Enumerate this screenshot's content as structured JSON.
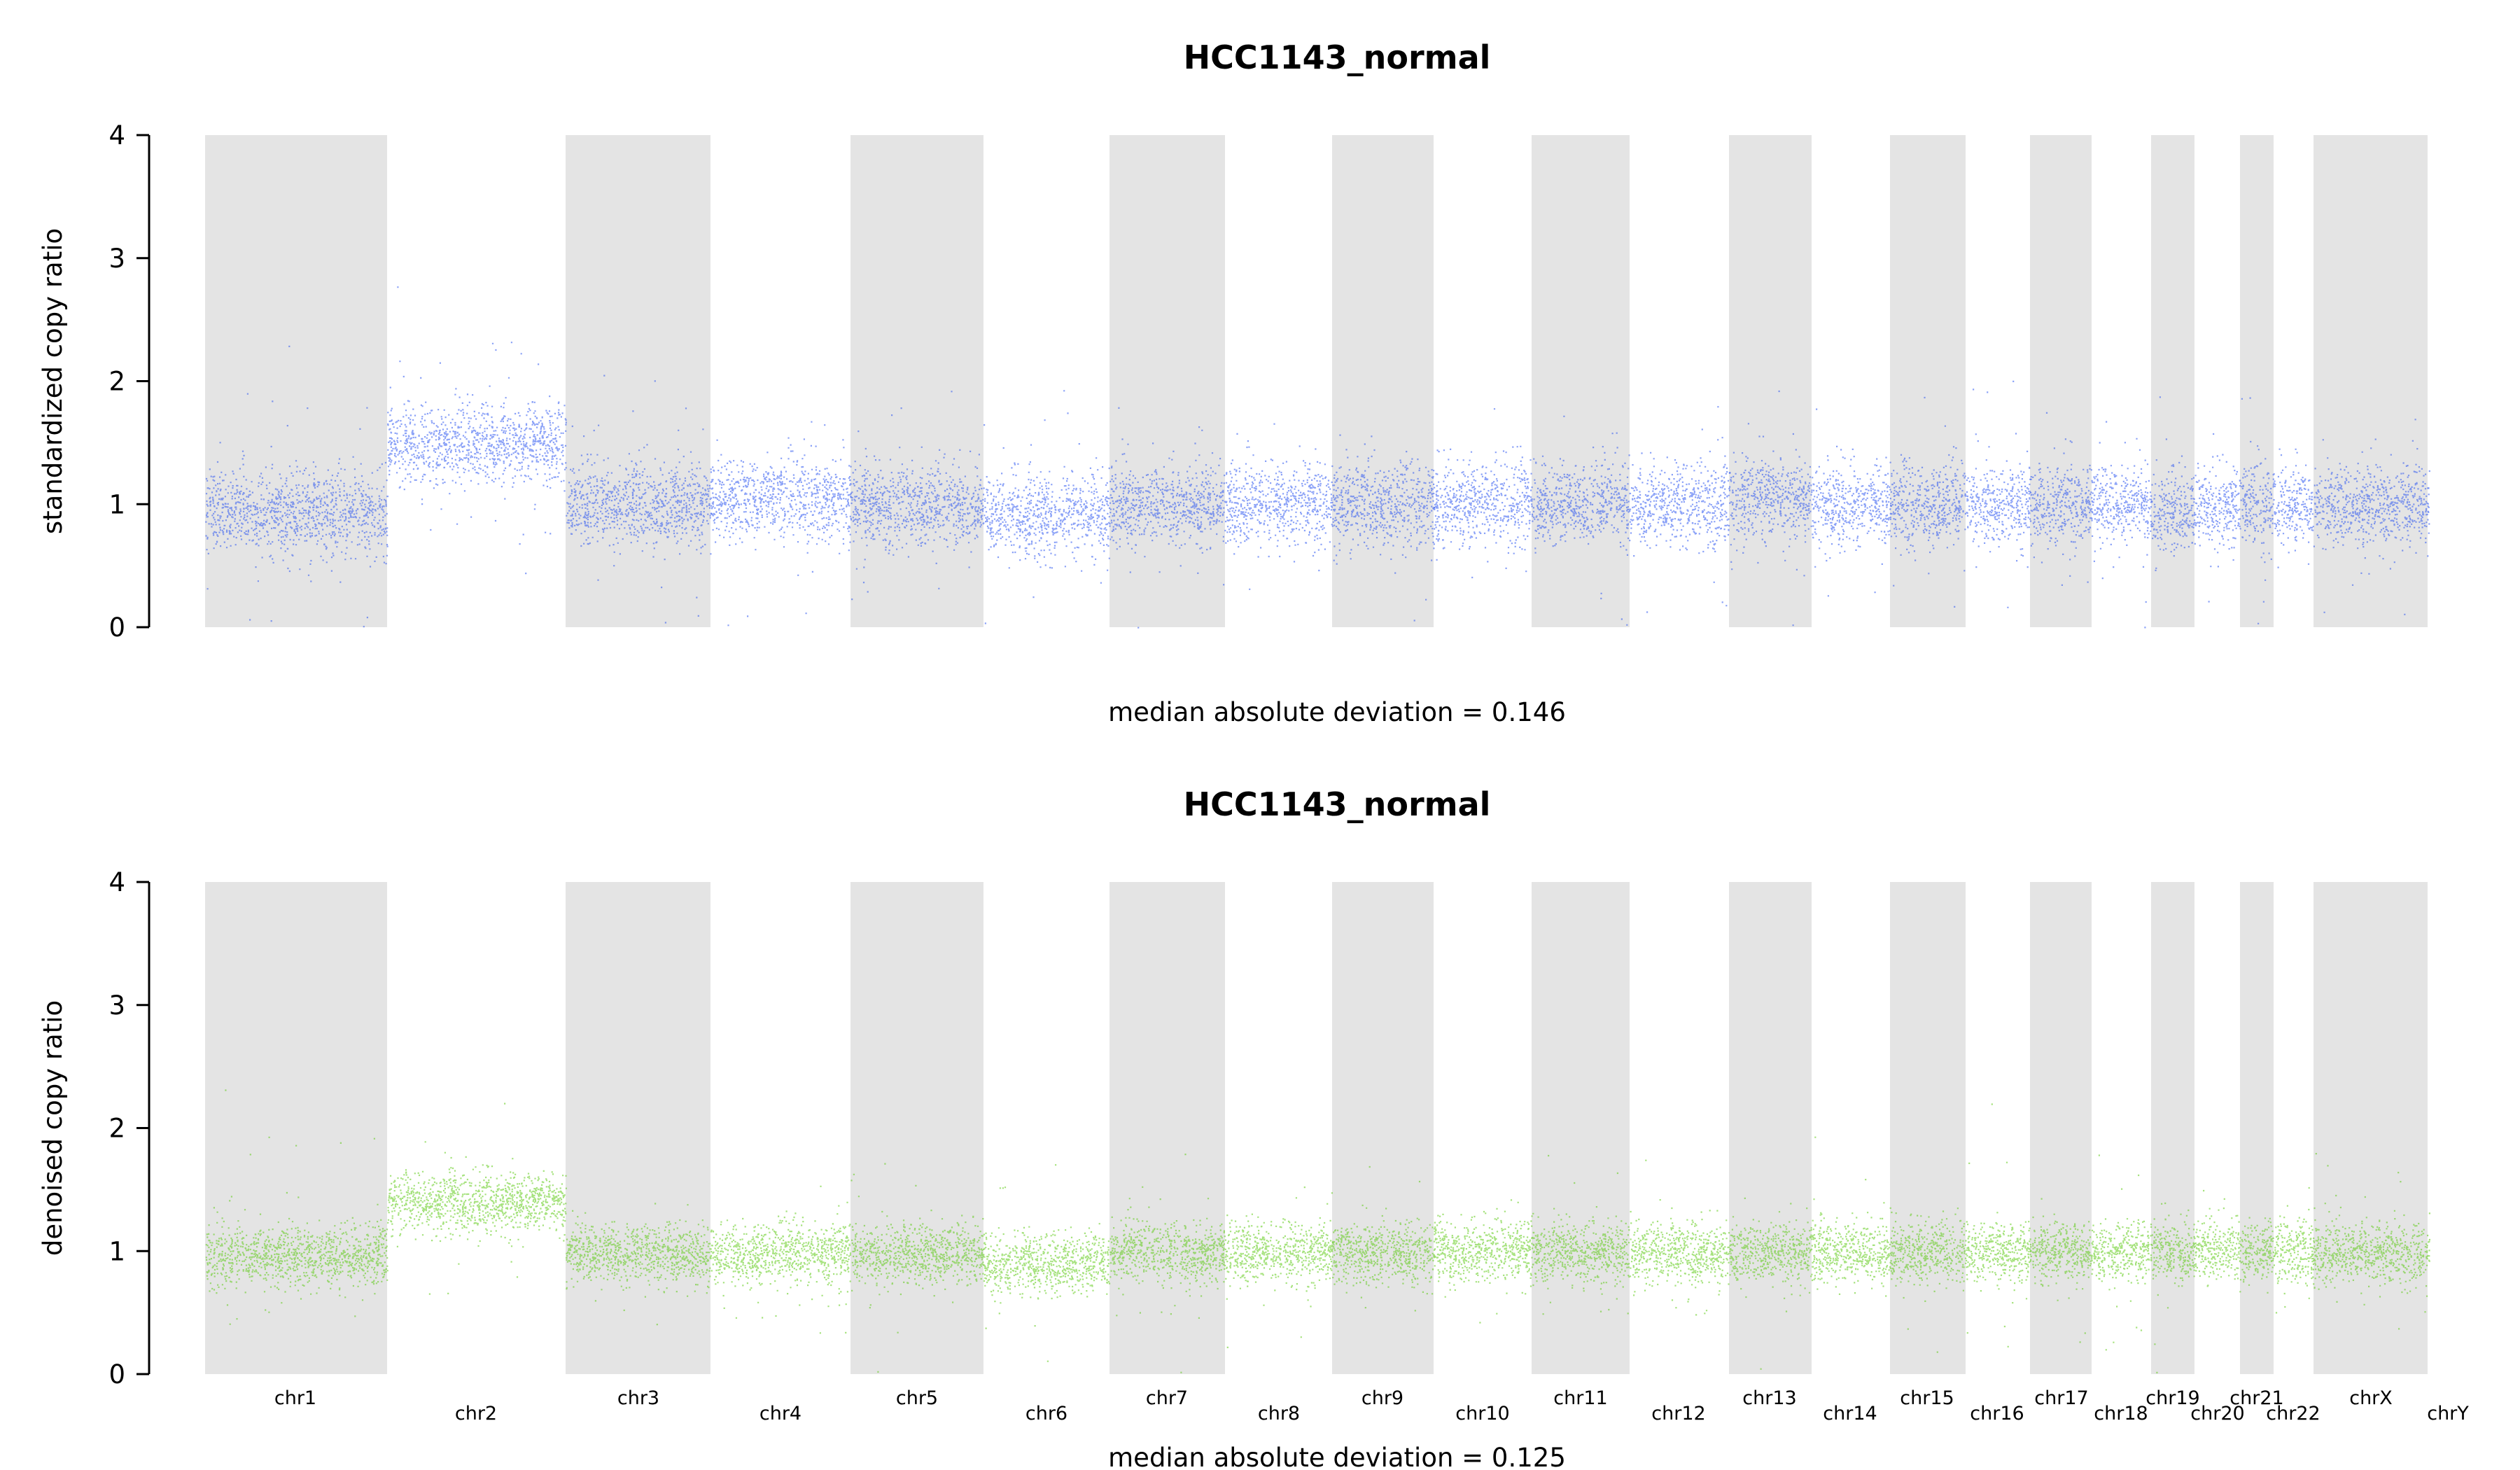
{
  "chart_data": [
    {
      "type": "scatter",
      "title": "HCC1143_normal",
      "ylabel": "standardized copy ratio",
      "ylim": [
        0,
        4
      ],
      "yticks": [
        "0",
        "1",
        "2",
        "3",
        "4"
      ],
      "point_color": "#2b55f0",
      "annotation": "median absolute deviation = 0.146",
      "segments": [
        {
          "chr": "chr1",
          "center": 0.95
        },
        {
          "chr": "chr2",
          "center": 1.5
        },
        {
          "chr": "chr3",
          "center": 1.0
        },
        {
          "chr": "chr4",
          "center": 1.05
        },
        {
          "chr": "chr5",
          "center": 1.0
        },
        {
          "chr": "chr6",
          "center": 0.92
        },
        {
          "chr": "chr7",
          "center": 1.0
        },
        {
          "chr": "chr8",
          "center": 1.0
        },
        {
          "chr": "chr9",
          "center": 1.0
        },
        {
          "chr": "chr10",
          "center": 1.0
        },
        {
          "chr": "chr11",
          "center": 1.0
        },
        {
          "chr": "chr12",
          "center": 1.0
        },
        {
          "chr": "chr13",
          "center": 1.05
        },
        {
          "chr": "chr14",
          "center": 1.0
        },
        {
          "chr": "chr15",
          "center": 1.0
        },
        {
          "chr": "chr16",
          "center": 1.0
        },
        {
          "chr": "chr17",
          "center": 1.0
        },
        {
          "chr": "chr18",
          "center": 1.0
        },
        {
          "chr": "chr19",
          "center": 0.95
        },
        {
          "chr": "chr20",
          "center": 1.0
        },
        {
          "chr": "chr21",
          "center": 1.0
        },
        {
          "chr": "chr22",
          "center": 1.0
        },
        {
          "chr": "chrX",
          "center": 1.0
        },
        {
          "chr": "chrY",
          "center": 1.0
        }
      ]
    },
    {
      "type": "scatter",
      "title": "HCC1143_normal",
      "ylabel": "denoised copy ratio",
      "ylim": [
        0,
        4
      ],
      "yticks": [
        "0",
        "1",
        "2",
        "3",
        "4"
      ],
      "point_color": "#5ccb14",
      "annotation": "median absolute deviation = 0.125",
      "segments": [
        {
          "chr": "chr1",
          "center": 0.97
        },
        {
          "chr": "chr2",
          "center": 1.4
        },
        {
          "chr": "chr3",
          "center": 0.98
        },
        {
          "chr": "chr4",
          "center": 0.98
        },
        {
          "chr": "chr5",
          "center": 0.98
        },
        {
          "chr": "chr6",
          "center": 0.9
        },
        {
          "chr": "chr7",
          "center": 1.0
        },
        {
          "chr": "chr8",
          "center": 1.0
        },
        {
          "chr": "chr9",
          "center": 1.0
        },
        {
          "chr": "chr10",
          "center": 1.0
        },
        {
          "chr": "chr11",
          "center": 1.0
        },
        {
          "chr": "chr12",
          "center": 1.0
        },
        {
          "chr": "chr13",
          "center": 1.0
        },
        {
          "chr": "chr14",
          "center": 1.0
        },
        {
          "chr": "chr15",
          "center": 1.0
        },
        {
          "chr": "chr16",
          "center": 1.0
        },
        {
          "chr": "chr17",
          "center": 1.0
        },
        {
          "chr": "chr18",
          "center": 1.0
        },
        {
          "chr": "chr19",
          "center": 1.0
        },
        {
          "chr": "chr20",
          "center": 1.0
        },
        {
          "chr": "chr21",
          "center": 1.0
        },
        {
          "chr": "chr22",
          "center": 1.0
        },
        {
          "chr": "chrX",
          "center": 0.98
        },
        {
          "chr": "chrY",
          "center": 1.0
        }
      ]
    }
  ],
  "chromosome_labels": [
    "chr1",
    "chr2",
    "chr3",
    "chr4",
    "chr5",
    "chr6",
    "chr7",
    "chr8",
    "chr9",
    "chr10",
    "chr11",
    "chr12",
    "chr13",
    "chr14",
    "chr15",
    "chr16",
    "chr17",
    "chr18",
    "chr19",
    "chr20",
    "chr21",
    "chr22",
    "chrX",
    "chrY"
  ],
  "band_color": "#e4e4e4"
}
